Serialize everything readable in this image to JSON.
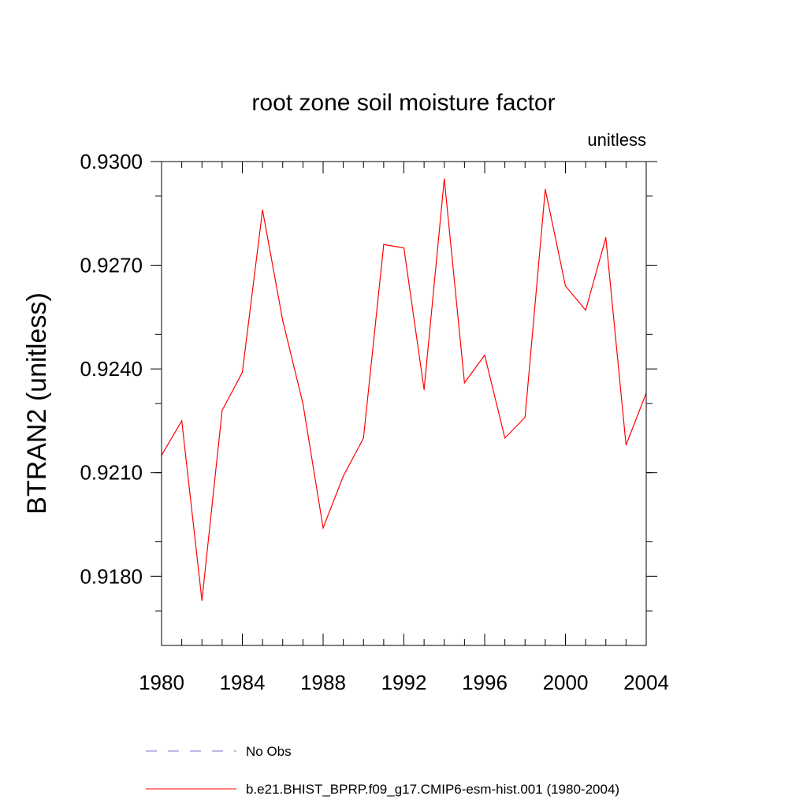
{
  "chart_data": {
    "type": "line",
    "title": "root zone soil moisture factor",
    "units_label": "unitless",
    "ylabel": "BTRAN2  (unitless)",
    "xlabel": "",
    "xlim": [
      1980,
      2004
    ],
    "ylim": [
      0.916,
      0.93
    ],
    "x_ticks": [
      1980,
      1984,
      1988,
      1992,
      1996,
      2000,
      2004
    ],
    "y_ticks": [
      0.918,
      0.921,
      0.924,
      0.927,
      0.93
    ],
    "x_tick_labels": [
      "1980",
      "1984",
      "1988",
      "1992",
      "1996",
      "2000",
      "2004"
    ],
    "y_tick_labels": [
      "0.9180",
      "0.9210",
      "0.9240",
      "0.9270",
      "0.9300"
    ],
    "legend_position": "bottom-left",
    "series": [
      {
        "name": "No Obs",
        "color": "#7777cc",
        "style": "dashed",
        "x": [],
        "values": []
      },
      {
        "name": "b.e21.BHIST_BPRP.f09_g17.CMIP6-esm-hist.001 (1980-2004)",
        "color": "#ff0000",
        "style": "solid",
        "x": [
          1980,
          1981,
          1982,
          1983,
          1984,
          1985,
          1986,
          1987,
          1988,
          1989,
          1990,
          1991,
          1992,
          1993,
          1994,
          1995,
          1996,
          1997,
          1998,
          1999,
          2000,
          2001,
          2002,
          2003,
          2004
        ],
        "values": [
          0.9215,
          0.9225,
          0.9173,
          0.9228,
          0.9239,
          0.9286,
          0.9254,
          0.923,
          0.9194,
          0.9209,
          0.922,
          0.9276,
          0.9275,
          0.9234,
          0.9295,
          0.9236,
          0.9244,
          0.922,
          0.9226,
          0.9292,
          0.9264,
          0.9257,
          0.9278,
          0.9218,
          0.9233
        ]
      }
    ]
  }
}
